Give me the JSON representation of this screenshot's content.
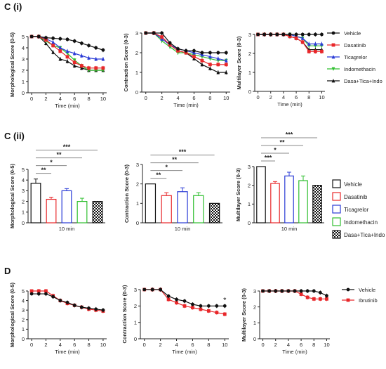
{
  "sections": {
    "ci": "C (i)",
    "cii": "C (ii)",
    "d": "D"
  },
  "colors": {
    "Vehicle": "#111111",
    "Dasatinib": "#e8272a",
    "Ticagrelor": "#2a3bd6",
    "Indomethacin": "#2fbf2f",
    "Dasa+Tica+Indo": "#111111",
    "Ibrutinib": "#e8272a"
  },
  "chart_data": [
    {
      "id": "ci-morph",
      "type": "line",
      "ylabel": "Morphological Score (0-5)",
      "xlabel": "Time (min)",
      "xticks": [
        0,
        2,
        4,
        6,
        8,
        10
      ],
      "yticks": [
        0,
        1,
        2,
        3,
        4,
        5
      ],
      "ylim": [
        0,
        5
      ],
      "xlim": [
        -0.5,
        10.5
      ],
      "x": [
        0,
        1,
        2,
        3,
        4,
        5,
        6,
        7,
        8,
        9,
        10
      ],
      "series": [
        {
          "name": "Vehicle",
          "values": [
            5,
            5,
            4.9,
            4.85,
            4.8,
            4.75,
            4.6,
            4.4,
            4.2,
            4,
            3.8
          ]
        },
        {
          "name": "Dasatinib",
          "values": [
            5,
            5,
            4.7,
            4.2,
            3.7,
            3.2,
            2.7,
            2.4,
            2.2,
            2.2,
            2.2
          ]
        },
        {
          "name": "Ticagrelor",
          "values": [
            5,
            5,
            4.8,
            4.5,
            4,
            3.7,
            3.5,
            3.3,
            3.1,
            3,
            3
          ]
        },
        {
          "name": "Indomethacin",
          "values": [
            5,
            5,
            4.6,
            4.2,
            4,
            3.5,
            2.9,
            2.4,
            2,
            2,
            2
          ]
        },
        {
          "name": "Dasa+Tica+Indo",
          "values": [
            5,
            5,
            4.4,
            3.6,
            3,
            2.8,
            2.4,
            2.2,
            2,
            2,
            2
          ]
        }
      ]
    },
    {
      "id": "ci-contr",
      "type": "line",
      "ylabel": "Contraction Score (0-3)",
      "xlabel": "Time (min)",
      "xticks": [
        0,
        2,
        4,
        6,
        8,
        10
      ],
      "yticks": [
        0,
        1,
        2,
        3
      ],
      "ylim": [
        0,
        3
      ],
      "xlim": [
        -0.5,
        10.5
      ],
      "x": [
        0,
        1,
        2,
        3,
        4,
        5,
        6,
        7,
        8,
        9,
        10
      ],
      "series": [
        {
          "name": "Vehicle",
          "values": [
            3,
            3,
            3,
            2.5,
            2.2,
            2.1,
            2.1,
            2,
            2,
            2,
            2
          ]
        },
        {
          "name": "Dasatinib",
          "values": [
            3,
            3,
            2.8,
            2.4,
            2.1,
            2,
            1.8,
            1.6,
            1.4,
            1.4,
            1.4
          ]
        },
        {
          "name": "Ticagrelor",
          "values": [
            3,
            3,
            2.7,
            2.4,
            2.2,
            2.1,
            2,
            1.9,
            1.8,
            1.7,
            1.6
          ]
        },
        {
          "name": "Indomethacin",
          "values": [
            3,
            3,
            2.6,
            2.3,
            2,
            2,
            1.9,
            1.8,
            1.7,
            1.6,
            1.6
          ]
        },
        {
          "name": "Dasa+Tica+Indo",
          "values": [
            3,
            3,
            2.8,
            2.4,
            2.1,
            2,
            1.7,
            1.4,
            1.2,
            1,
            1
          ]
        }
      ]
    },
    {
      "id": "ci-multi",
      "type": "line",
      "ylabel": "Multilayer Score (0-3)",
      "xlabel": "Time (min)",
      "xticks": [
        0,
        2,
        4,
        6,
        8,
        10
      ],
      "yticks": [
        0,
        1,
        2,
        3
      ],
      "ylim": [
        0,
        3
      ],
      "xlim": [
        -0.5,
        10.5
      ],
      "x": [
        0,
        1,
        2,
        3,
        4,
        5,
        6,
        7,
        8,
        9,
        10
      ],
      "series": [
        {
          "name": "Vehicle",
          "values": [
            3,
            3,
            3,
            3,
            3,
            3,
            3,
            3,
            3,
            3,
            3
          ]
        },
        {
          "name": "Dasatinib",
          "values": [
            3,
            3,
            3,
            3,
            3,
            2.9,
            2.8,
            2.6,
            2.1,
            2.1,
            2.1
          ]
        },
        {
          "name": "Ticagrelor",
          "values": [
            3,
            3,
            3,
            3,
            3,
            3,
            2.9,
            2.8,
            2.5,
            2.5,
            2.5
          ]
        },
        {
          "name": "Indomethacin",
          "values": [
            3,
            3,
            3,
            3,
            3,
            3,
            2.9,
            2.8,
            2.4,
            2.4,
            2.4
          ]
        },
        {
          "name": "Dasa+Tica+Indo",
          "values": [
            3,
            3,
            3,
            3,
            3,
            2.9,
            2.8,
            2.6,
            2.2,
            2.2,
            2.2
          ]
        }
      ]
    },
    {
      "id": "cii-morph",
      "type": "bar",
      "ylabel": "Morphological Score (0-5)",
      "xlabel": "10 min",
      "categories": [
        "Vehicle",
        "Dasatinib",
        "Ticagrelor",
        "Indomethacin",
        "Dasa+Tica+Indo"
      ],
      "values": [
        3.7,
        2.2,
        3,
        2,
        2
      ],
      "errors": [
        0.4,
        0.2,
        0.2,
        0.3,
        0
      ],
      "yticks": [
        0,
        1,
        2,
        3,
        4,
        5
      ],
      "ylim": [
        0,
        5
      ],
      "significance": [
        {
          "to": 1,
          "label": "**"
        },
        {
          "to": 2,
          "label": "*"
        },
        {
          "to": 3,
          "label": "**"
        },
        {
          "to": 4,
          "label": "***"
        }
      ]
    },
    {
      "id": "cii-contr",
      "type": "bar",
      "ylabel": "Contraction Score (0-3)",
      "xlabel": "10 min",
      "categories": [
        "Vehicle",
        "Dasatinib",
        "Ticagrelor",
        "Indomethacin",
        "Dasa+Tica+Indo"
      ],
      "values": [
        2,
        1.4,
        1.6,
        1.4,
        1
      ],
      "errors": [
        0,
        0.15,
        0.2,
        0.15,
        0
      ],
      "yticks": [
        0,
        1,
        2,
        3
      ],
      "ylim": [
        0,
        3
      ],
      "significance": [
        {
          "to": 1,
          "label": "**"
        },
        {
          "to": 2,
          "label": "*"
        },
        {
          "to": 3,
          "label": "**"
        },
        {
          "to": 4,
          "label": "***"
        }
      ]
    },
    {
      "id": "cii-multi",
      "type": "bar",
      "ylabel": "Multilayer Score (0-3)",
      "xlabel": "10 min",
      "categories": [
        "Vehicle",
        "Dasatinib",
        "Ticagrelor",
        "Indomethacin",
        "Dasa+Tica+Indo"
      ],
      "values": [
        3,
        2.1,
        2.5,
        2.25,
        2
      ],
      "errors": [
        0,
        0.1,
        0.2,
        0.25,
        0
      ],
      "yticks": [
        0,
        1,
        2,
        3
      ],
      "ylim": [
        0,
        3
      ],
      "significance": [
        {
          "to": 1,
          "label": "***"
        },
        {
          "to": 2,
          "label": "*"
        },
        {
          "to": 3,
          "label": "**"
        },
        {
          "to": 4,
          "label": "***"
        }
      ]
    },
    {
      "id": "d-morph",
      "type": "line",
      "ylabel": "Morphological Score (0-5)",
      "xlabel": "Time (min)",
      "xticks": [
        0,
        2,
        4,
        6,
        8,
        10
      ],
      "yticks": [
        0,
        1,
        2,
        3,
        4,
        5
      ],
      "ylim": [
        0,
        5
      ],
      "xlim": [
        -0.5,
        10.5
      ],
      "x": [
        0,
        1,
        2,
        3,
        4,
        5,
        6,
        7,
        8,
        9,
        10
      ],
      "series": [
        {
          "name": "Vehicle",
          "values": [
            4.7,
            4.7,
            4.7,
            4.4,
            4,
            3.8,
            3.5,
            3.3,
            3.2,
            3.1,
            3
          ]
        },
        {
          "name": "Ibrutinib",
          "values": [
            5,
            5,
            5,
            4.5,
            4,
            3.7,
            3.5,
            3.3,
            3.1,
            3,
            2.9
          ]
        }
      ]
    },
    {
      "id": "d-contr",
      "type": "line",
      "ylabel": "Contraction Score (0-3)",
      "xlabel": "Time (min)",
      "xticks": [
        0,
        2,
        4,
        6,
        8,
        10
      ],
      "yticks": [
        0,
        1,
        2,
        3
      ],
      "ylim": [
        0,
        3
      ],
      "xlim": [
        -0.5,
        10.5
      ],
      "x": [
        0,
        1,
        2,
        3,
        4,
        5,
        6,
        7,
        8,
        9,
        10
      ],
      "series": [
        {
          "name": "Vehicle",
          "values": [
            3,
            3,
            3,
            2.6,
            2.4,
            2.3,
            2.1,
            2,
            2,
            2,
            2
          ]
        },
        {
          "name": "Ibrutinib",
          "values": [
            3,
            3,
            3,
            2.4,
            2.2,
            2,
            1.9,
            1.8,
            1.7,
            1.6,
            1.5
          ]
        }
      ],
      "annotation": {
        "x": 10,
        "label": "*"
      }
    },
    {
      "id": "d-multi",
      "type": "line",
      "ylabel": "Multilayer Score (0-3)",
      "xlabel": "Time (min)",
      "xticks": [
        0,
        2,
        4,
        6,
        8,
        10
      ],
      "yticks": [
        0,
        1,
        2,
        3
      ],
      "ylim": [
        0,
        3
      ],
      "xlim": [
        -0.5,
        10.5
      ],
      "x": [
        0,
        1,
        2,
        3,
        4,
        5,
        6,
        7,
        8,
        9,
        10
      ],
      "series": [
        {
          "name": "Vehicle",
          "values": [
            3,
            3,
            3,
            3,
            3,
            3,
            3,
            3,
            3,
            2.9,
            2.7
          ]
        },
        {
          "name": "Ibrutinib",
          "values": [
            3,
            3,
            3,
            3,
            3,
            3,
            2.8,
            2.6,
            2.5,
            2.5,
            2.5
          ]
        }
      ]
    }
  ],
  "legends": {
    "ci": [
      "Vehicle",
      "Dasatinib",
      "Ticagrelor",
      "Indomethacin",
      "Dasa+Tica+Indo"
    ],
    "cii": [
      "Vehicle",
      "Dasatinib",
      "Ticagrelor",
      "Indomethacin",
      "Dasa+Tica+Indo"
    ],
    "d": [
      "Vehicle",
      "Ibrutinib"
    ]
  }
}
